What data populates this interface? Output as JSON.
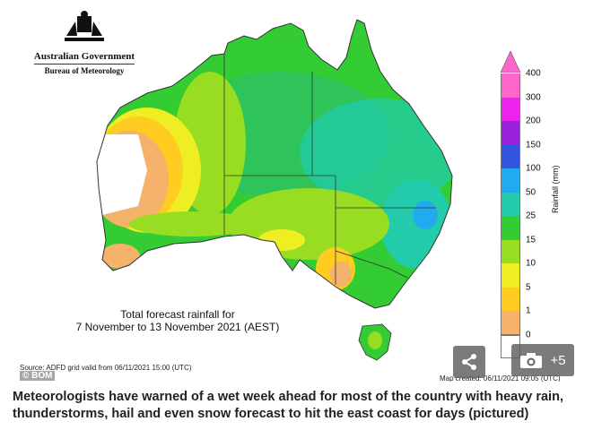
{
  "logo": {
    "line1": "Australian Government",
    "line2": "Bureau of Meteorology"
  },
  "map": {
    "title_line1": "Total forecast rainfall for",
    "title_line2": "7 November to 13 November 2021 (AEST)",
    "source": "Source: ADFD grid valid from 06/11/2021 15:00 (UTC)",
    "created": "Map created: 06/11/2021 09:05 (UTC)",
    "credit": "© BOM"
  },
  "legend": {
    "unit": "Rainfall (mm)",
    "levels": [
      {
        "label": "400",
        "color": "#ff66cc"
      },
      {
        "label": "300",
        "color": "#ee22ee"
      },
      {
        "label": "200",
        "color": "#9922dd"
      },
      {
        "label": "150",
        "color": "#3355dd"
      },
      {
        "label": "100",
        "color": "#22aaee"
      },
      {
        "label": "50",
        "color": "#22ccaa"
      },
      {
        "label": "25",
        "color": "#33cc33"
      },
      {
        "label": "15",
        "color": "#99dd22"
      },
      {
        "label": "10",
        "color": "#eeee22"
      },
      {
        "label": "5",
        "color": "#ffcc22"
      },
      {
        "label": "1",
        "color": "#f4b26a"
      },
      {
        "label": "0",
        "color": "#ffffff"
      }
    ]
  },
  "overlay": {
    "gallery_count": "+5",
    "share_icon": "share-icon",
    "camera_icon": "camera-icon"
  },
  "caption": "Meteorologists have warned of a wet week ahead for most of the country with heavy rain, thunderstorms, hail and even snow forecast to hit the east coast for days (pictured)"
}
